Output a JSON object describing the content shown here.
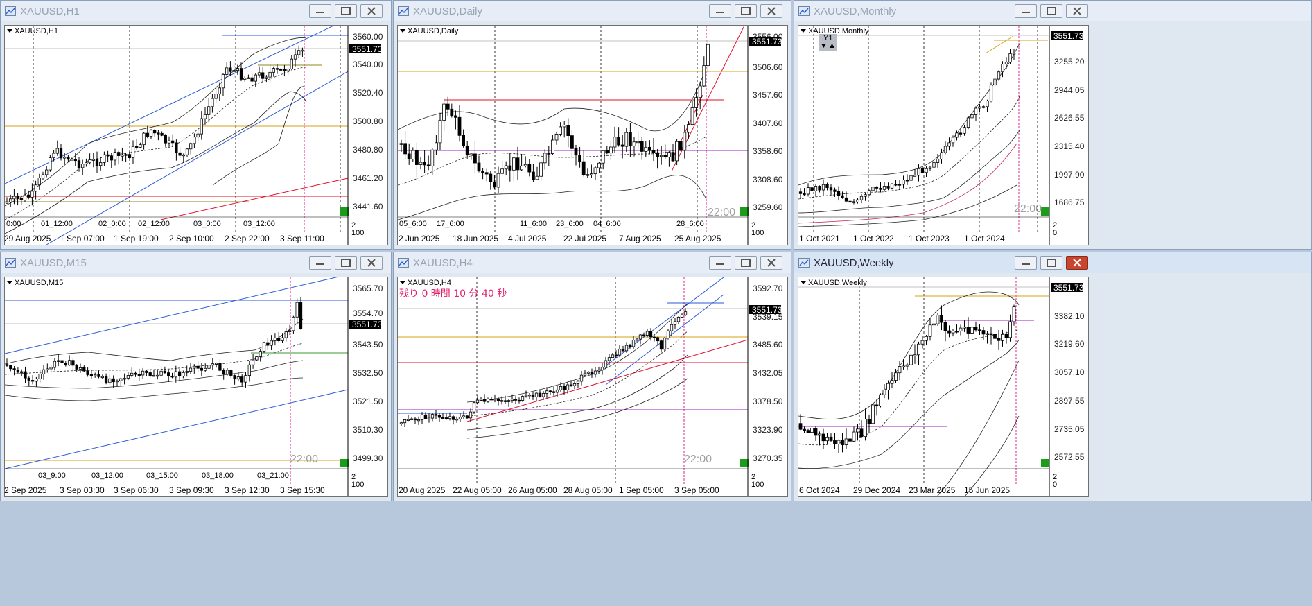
{
  "colors": {
    "up": "#ffffff",
    "down": "#000000",
    "grid": "#000000",
    "band": "#222222",
    "blue_channel": "#2a5ad8",
    "red_line": "#e0102a",
    "gold_line": "#d4a017",
    "purple_line": "#a020c0",
    "vline": "#e0208a"
  },
  "windows": [
    {
      "id": "h1",
      "title": "XAUUSD,H1",
      "symbol_label": "XAUUSD,H1",
      "active": false,
      "price_axis": [
        "3560.00",
        "3540.00",
        "3520.40",
        "3500.80",
        "3480.80",
        "3461.20",
        "3441.60"
      ],
      "bottom_axis": [
        "29 Aug 2025",
        "1 Sep 07:00",
        "1 Sep 19:00",
        "2 Sep 10:00",
        "2 Sep 22:00",
        "3 Sep 11:00"
      ],
      "time_labels": [
        "0:00",
        "01_12:00",
        "02_0:00",
        "02_12:00",
        "03_0:00",
        "03_12:00"
      ],
      "current_price": "3551.73",
      "sub_top": "2",
      "sub_bottom": "100",
      "corner_text": ""
    },
    {
      "id": "daily",
      "title": "XAUUSD,Daily",
      "symbol_label": "XAUUSD,Daily",
      "active": false,
      "price_axis": [
        "3556.00",
        "3506.60",
        "3457.60",
        "3407.60",
        "3358.60",
        "3308.60",
        "3259.60"
      ],
      "bottom_axis": [
        "2 Jun 2025",
        "18 Jun 2025",
        "4 Jul 2025",
        "22 Jul 2025",
        "7 Aug 2025",
        "25 Aug 2025"
      ],
      "time_labels": [
        "05_6:00",
        "17_6:00",
        "11_6:00",
        "23_6:00",
        "04_6:00",
        "28_6:00"
      ],
      "current_price": "3551.73",
      "sub_top": "2",
      "sub_bottom": "100",
      "corner_text": "22:00"
    },
    {
      "id": "monthly",
      "title": "XAUUSD,Monthly",
      "symbol_label": "XAUUSD,Monthly",
      "active": false,
      "price_axis": [
        "3551.73",
        "3255.20",
        "2944.05",
        "2626.55",
        "2315.40",
        "1997.90",
        "1686.75"
      ],
      "bottom_axis": [
        "1 Oct 2021",
        "1 Oct 2022",
        "1 Oct 2023",
        "1 Oct 2024"
      ],
      "time_labels": [],
      "current_price": "3551.73",
      "sub_top": "2",
      "sub_bottom": "0",
      "corner_text": "22:00",
      "y1_box": "Y1"
    },
    {
      "id": "m15",
      "title": "XAUUSD,M15",
      "symbol_label": "XAUUSD,M15",
      "active": false,
      "price_axis": [
        "3565.70",
        "3554.70",
        "3543.50",
        "3532.50",
        "3521.50",
        "3510.30",
        "3499.30"
      ],
      "bottom_axis": [
        "2 Sep 2025",
        "3 Sep 03:30",
        "3 Sep 06:30",
        "3 Sep 09:30",
        "3 Sep 12:30",
        "3 Sep 15:30"
      ],
      "time_labels": [
        "03_9:00",
        "03_12:00",
        "03_15:00",
        "03_18:00",
        "03_21:00"
      ],
      "current_price": "3551.73",
      "sub_top": "2",
      "sub_bottom": "100",
      "corner_text": "22:00"
    },
    {
      "id": "h4",
      "title": "XAUUSD,H4",
      "symbol_label": "XAUUSD,H4",
      "active": false,
      "price_axis": [
        "3592.70",
        "3539.15",
        "3485.60",
        "3432.05",
        "3378.50",
        "3323.90",
        "3270.35"
      ],
      "bottom_axis": [
        "20 Aug 2025",
        "22 Aug 05:00",
        "26 Aug 05:00",
        "28 Aug 05:00",
        "1 Sep 05:00",
        "3 Sep 05:00"
      ],
      "time_labels": [],
      "current_price": "3551.73",
      "sub_top": "2",
      "sub_bottom": "100",
      "corner_text": "22:00",
      "timer_text": "残り 0 時間 10 分 40 秒"
    },
    {
      "id": "weekly",
      "title": "XAUUSD,Weekly",
      "symbol_label": "XAUUSD,Weekly",
      "active": true,
      "price_axis": [
        "3551.73",
        "3382.10",
        "3219.60",
        "3057.10",
        "2897.55",
        "2735.05",
        "2572.55"
      ],
      "bottom_axis": [
        "6 Oct 2024",
        "29 Dec 2024",
        "23 Mar 2025",
        "15 Jun 2025"
      ],
      "time_labels": [],
      "current_price": "3551.73",
      "sub_top": "2",
      "sub_bottom": "0",
      "corner_text": ""
    }
  ]
}
